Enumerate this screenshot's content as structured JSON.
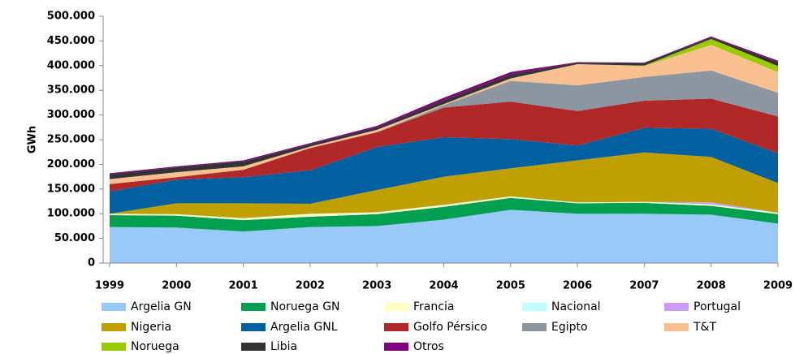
{
  "chart_data": {
    "type": "stacked-area",
    "y_label": "GWh",
    "categories": [
      "1999",
      "2000",
      "2001",
      "2002",
      "2003",
      "2004",
      "2005",
      "2006",
      "2007",
      "2008",
      "2009"
    ],
    "ylim": [
      0,
      500000
    ],
    "yticks": [
      0,
      {
        "value": 50000,
        "label": "50.000"
      },
      {
        "value": 100000,
        "label": "100.000"
      },
      {
        "value": 150000,
        "label": "150.000"
      },
      {
        "value": 200000,
        "label": "200.000"
      },
      {
        "value": 250000,
        "label": "250.000"
      },
      {
        "value": 300000,
        "label": "300.000"
      },
      {
        "value": 350000,
        "label": "350.000"
      },
      {
        "value": 400000,
        "label": "400.000"
      },
      {
        "value": 450000,
        "label": "450.000"
      },
      {
        "value": 500000,
        "label": "500.000"
      }
    ],
    "series": [
      {
        "name": "Argelia GN",
        "color": "#99c9f7",
        "values": [
          73000,
          72000,
          64000,
          73000,
          75000,
          88000,
          108000,
          100000,
          100000,
          98000,
          80000
        ]
      },
      {
        "name": "Noruega GN",
        "color": "#00a050",
        "values": [
          24000,
          24000,
          23000,
          21000,
          24000,
          26000,
          24000,
          21000,
          22000,
          18000,
          19000
        ]
      },
      {
        "name": "Francia",
        "color": "#ffffc0",
        "values": [
          2000,
          2000,
          3000,
          5000,
          3000,
          3000,
          2000,
          1000,
          1000,
          2000,
          2000
        ]
      },
      {
        "name": "Nacional",
        "color": "#c0ffff",
        "values": [
          1000,
          1000,
          1000,
          1000,
          1000,
          1000,
          1000,
          1000,
          1000,
          1000,
          1000
        ]
      },
      {
        "name": "Portugal",
        "color": "#cc99ff",
        "values": [
          0,
          0,
          0,
          0,
          0,
          0,
          0,
          0,
          0,
          4000,
          0
        ]
      },
      {
        "name": "Nigeria",
        "color": "#c0a000",
        "values": [
          0,
          22000,
          30000,
          20000,
          45000,
          57000,
          57000,
          85000,
          100000,
          92000,
          60000
        ]
      },
      {
        "name": "Argelia GNL",
        "color": "#0060a0",
        "values": [
          45000,
          48000,
          53000,
          68000,
          87000,
          80000,
          59000,
          30000,
          50000,
          57000,
          60000
        ]
      },
      {
        "name": "Golfo Pérsico",
        "color": "#b02828",
        "values": [
          15000,
          5000,
          15000,
          45000,
          30000,
          60000,
          76000,
          70000,
          55000,
          61000,
          75000
        ]
      },
      {
        "name": "Egipto",
        "color": "#8c96a0",
        "values": [
          0,
          0,
          0,
          0,
          0,
          5000,
          42000,
          52000,
          48000,
          57000,
          48000
        ]
      },
      {
        "name": "T&T",
        "color": "#fac090",
        "values": [
          10000,
          10000,
          7000,
          3000,
          5000,
          2000,
          5000,
          43000,
          22000,
          52000,
          42000
        ]
      },
      {
        "name": "Noruega",
        "color": "#99cc00",
        "values": [
          0,
          0,
          0,
          0,
          0,
          0,
          0,
          0,
          1000,
          12000,
          12000
        ]
      },
      {
        "name": "Libia",
        "color": "#333333",
        "values": [
          10000,
          10000,
          10000,
          5000,
          5000,
          8000,
          8000,
          3000,
          5000,
          3000,
          8000
        ]
      },
      {
        "name": "Otros",
        "color": "#800080",
        "values": [
          2000,
          2000,
          2000,
          2000,
          3000,
          5000,
          5000,
          1000,
          1000,
          2000,
          3000
        ]
      }
    ]
  }
}
